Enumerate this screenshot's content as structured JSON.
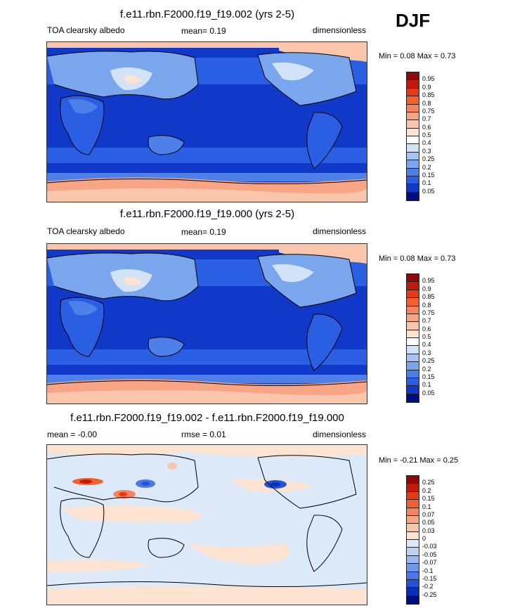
{
  "season": "DJF",
  "panels": [
    {
      "title": "f.e11.rbn.F2000.f19_f19.002 (yrs 2-5)",
      "left_label": "TOA clearsky albedo",
      "mid_label": "mean=   0.19",
      "right_label": "dimensionless",
      "minmax": "Min =   0.08 Max =   0.73",
      "colorbar": {
        "labels": [
          "0.95",
          "0.9",
          "0.85",
          "0.8",
          "0.75",
          "0.7",
          "0.6",
          "0.5",
          "0.4",
          "0.3",
          "0.25",
          "0.2",
          "0.15",
          "0.1",
          "0.05"
        ],
        "colors": [
          "#8e0a0a",
          "#c21a0a",
          "#e63a14",
          "#f2602c",
          "#f5845a",
          "#f7a585",
          "#fac6ab",
          "#fde3d2",
          "#ffffff",
          "#d3e3f7",
          "#a4c4f2",
          "#7aa6ee",
          "#4e80ea",
          "#2b5fe3",
          "#1038c9",
          "#000c80"
        ]
      }
    },
    {
      "title": "f.e11.rbn.F2000.f19_f19.000 (yrs 2-5)",
      "left_label": "TOA clearsky albedo",
      "mid_label": "mean=  0.19",
      "right_label": "dimensionless",
      "minmax": "Min =   0.08 Max =   0.73",
      "colorbar": {
        "labels": [
          "0.95",
          "0.9",
          "0.85",
          "0.8",
          "0.75",
          "0.7",
          "0.6",
          "0.5",
          "0.4",
          "0.3",
          "0.25",
          "0.2",
          "0.15",
          "0.1",
          "0.05"
        ],
        "colors": [
          "#8e0a0a",
          "#c21a0a",
          "#e63a14",
          "#f2602c",
          "#f5845a",
          "#f7a585",
          "#fac6ab",
          "#fde3d2",
          "#ffffff",
          "#d3e3f7",
          "#a4c4f2",
          "#7aa6ee",
          "#4e80ea",
          "#2b5fe3",
          "#1038c9",
          "#000c80"
        ]
      }
    },
    {
      "title": "f.e11.rbn.F2000.f19_f19.002 - f.e11.rbn.F2000.f19_f19.000",
      "left_label": "mean =  -0.00",
      "mid_label": "rmse =   0.01",
      "right_label": "dimensionless",
      "minmax": "Min =  -0.21 Max =   0.25",
      "colorbar": {
        "labels": [
          "0.25",
          "0.2",
          "0.15",
          "0.1",
          "0.07",
          "0.05",
          "0.03",
          "0",
          "-0.03",
          "-0.05",
          "-0.07",
          "-0.1",
          "-0.15",
          "-0.2",
          "-0.25"
        ],
        "colors": [
          "#8e0a0a",
          "#c21a0a",
          "#e63a14",
          "#f2602c",
          "#f5845a",
          "#f7a585",
          "#fac6ab",
          "#fde3d2",
          "#dbe9f8",
          "#bcd3f4",
          "#99b9f0",
          "#6f98ec",
          "#4a78e8",
          "#2552dc",
          "#0c2fb8",
          "#000c80"
        ]
      }
    }
  ]
}
